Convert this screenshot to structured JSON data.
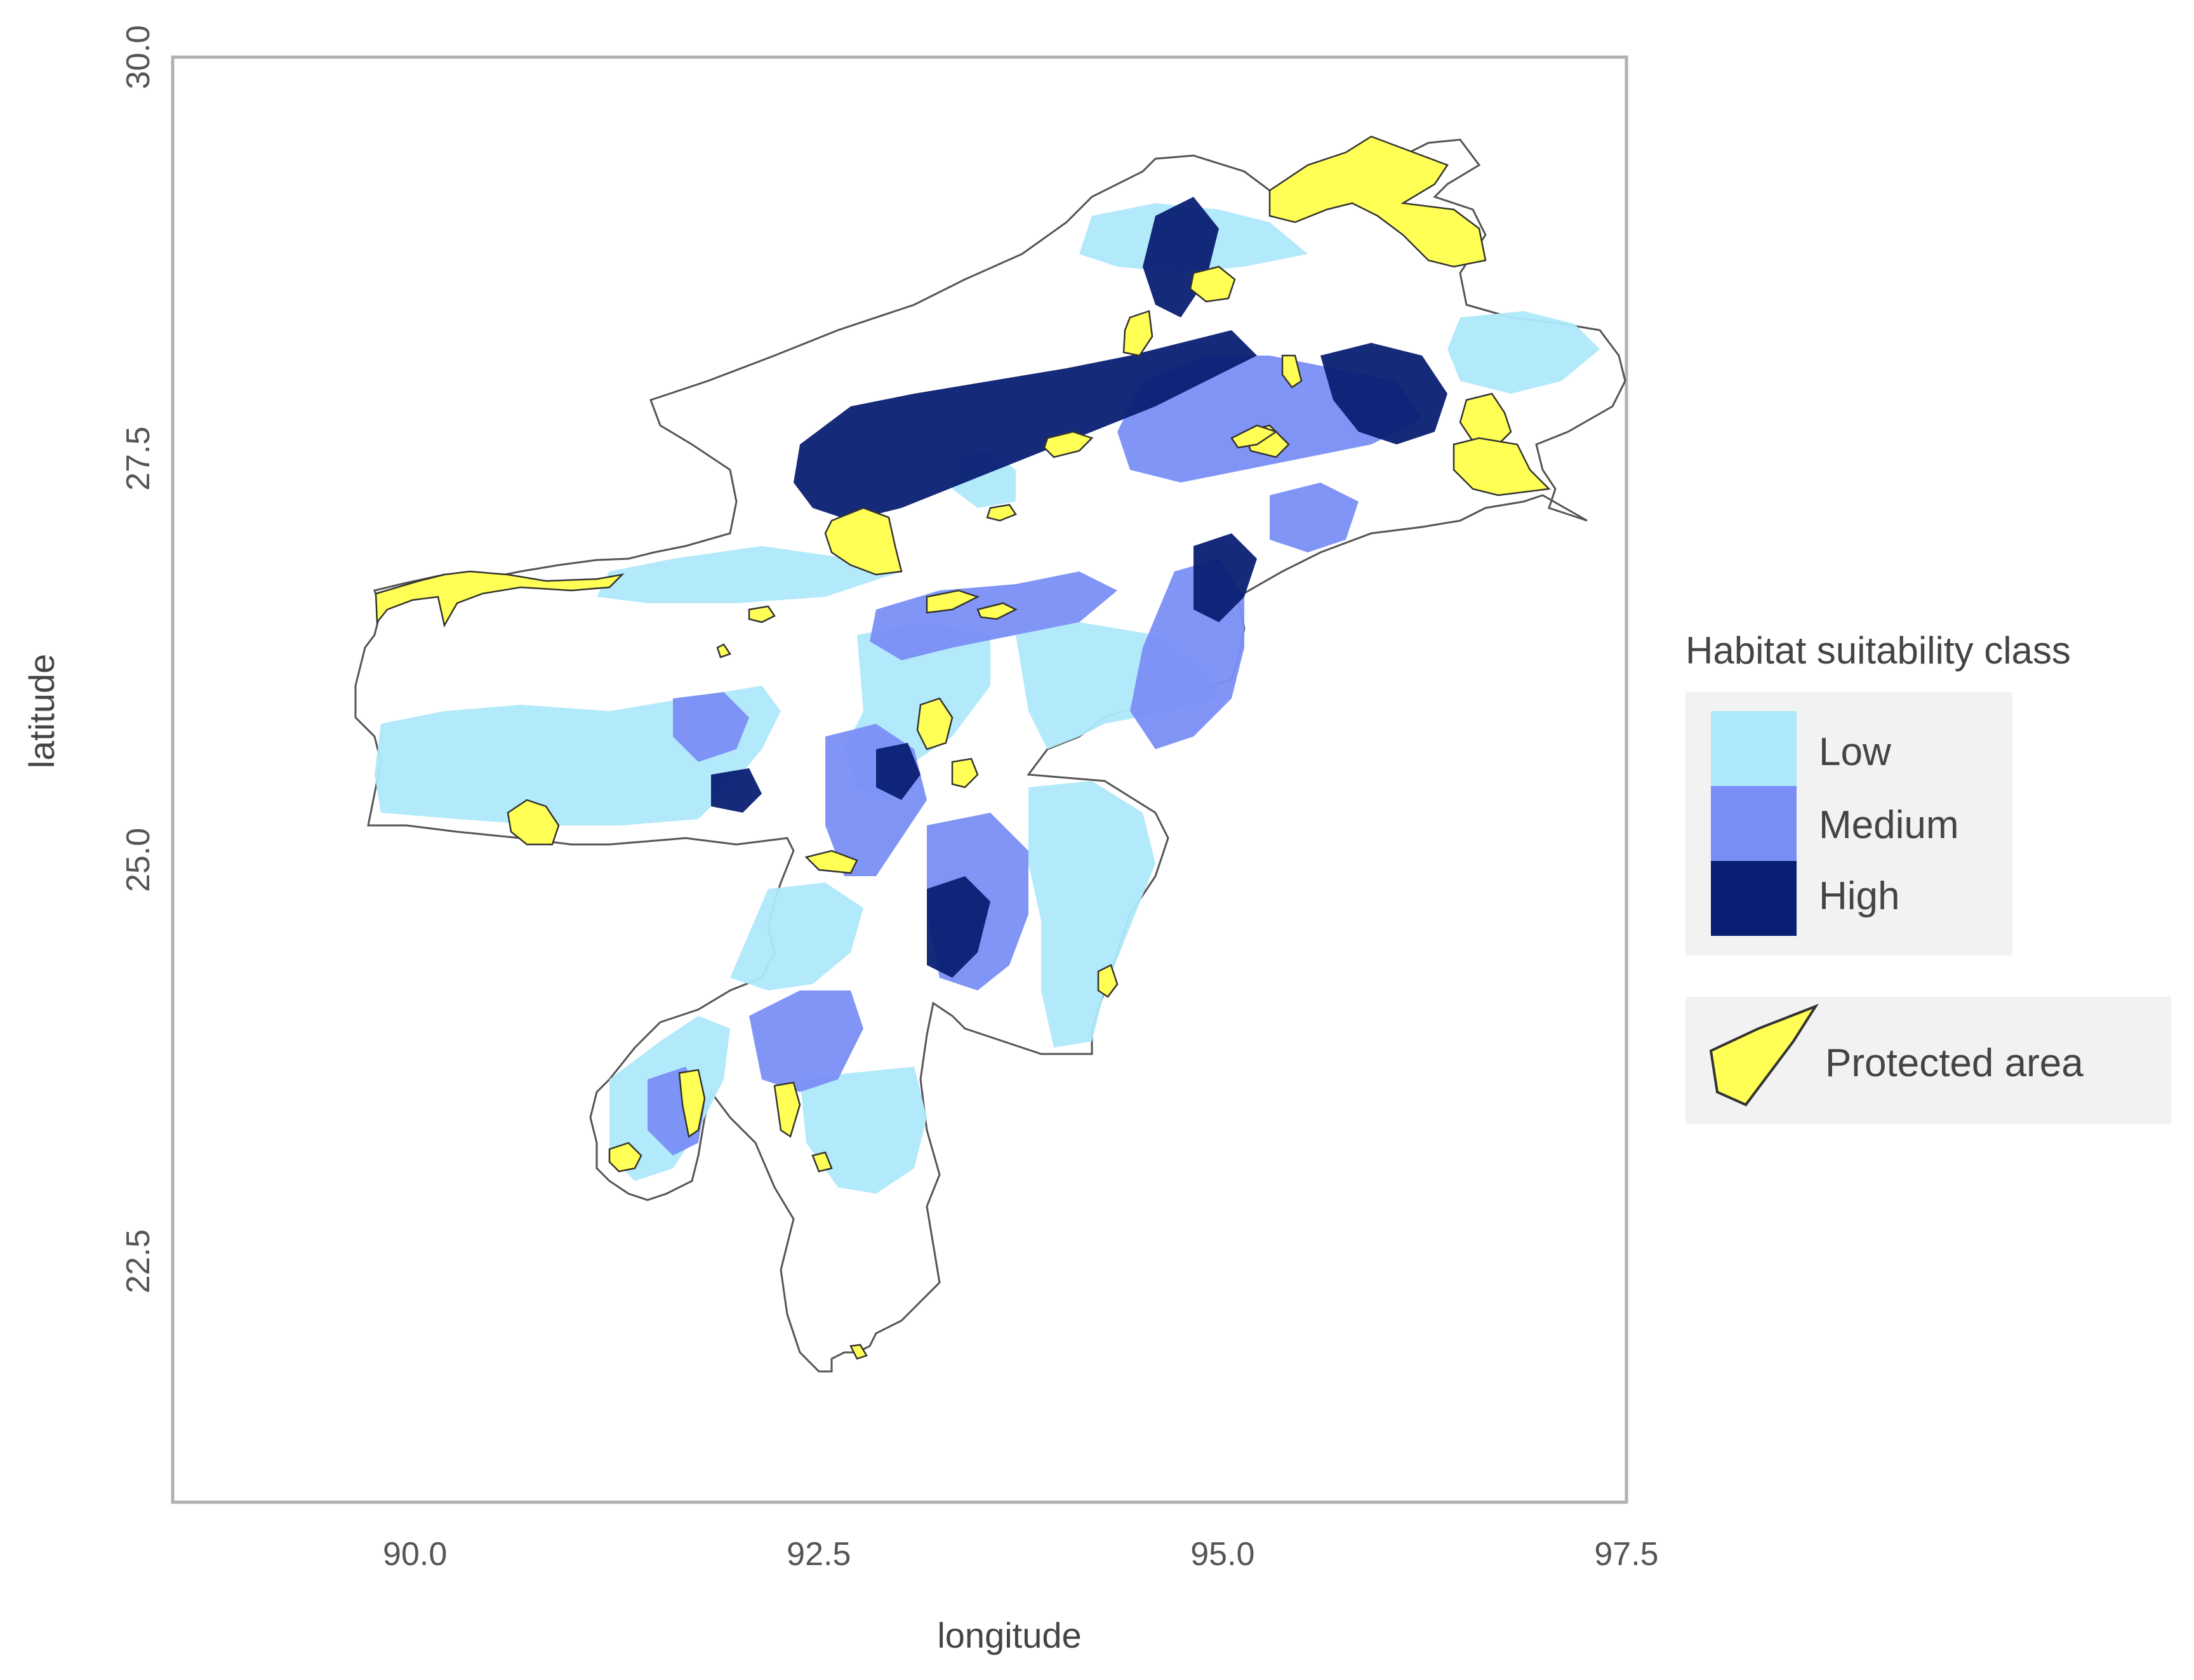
{
  "map": {
    "x_axis": {
      "label": "longitude",
      "range": [
        88.5,
        97.5
      ],
      "ticks": [
        "90.0",
        "92.5",
        "95.0",
        "97.5"
      ],
      "tick_values": [
        90.0,
        92.5,
        95.0,
        97.5
      ]
    },
    "y_axis": {
      "label": "latitude",
      "range": [
        21.0,
        30.0
      ],
      "ticks": [
        "22.5",
        "25.0",
        "27.5",
        "30.0"
      ],
      "tick_values": [
        22.5,
        25.0,
        27.5,
        30.0
      ]
    },
    "grid": false,
    "region_outline_color": "#555555",
    "legend": {
      "title": "Habitat suitability class",
      "placement": "right",
      "classes": [
        {
          "label": "Low",
          "color": "#aee8fb"
        },
        {
          "label": "Medium",
          "color": "#7a8ff5"
        },
        {
          "label": "High",
          "color": "#0a1f73"
        }
      ],
      "protected_area": {
        "label": "Protected area",
        "color": "#ffff55"
      }
    }
  }
}
